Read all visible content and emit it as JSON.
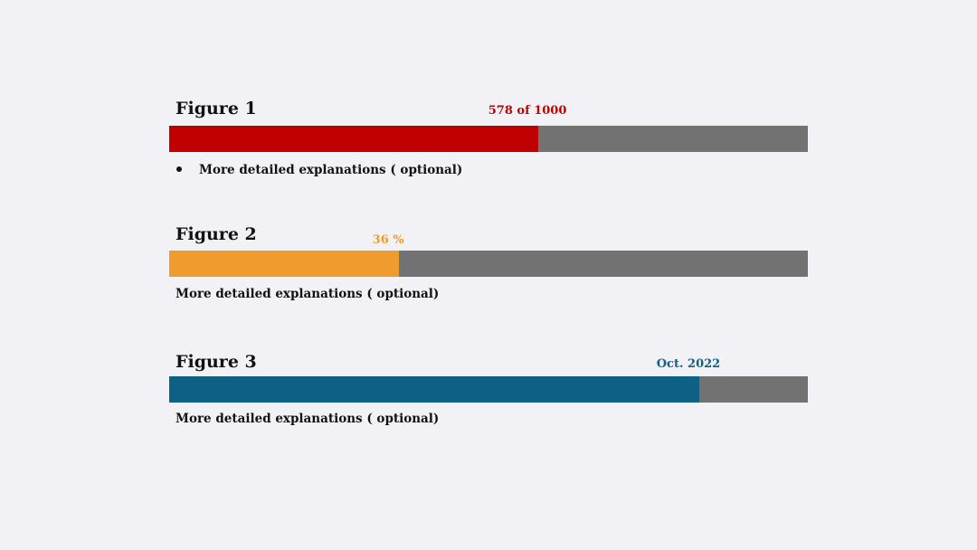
{
  "chart_data": [
    {
      "type": "progress",
      "title": "Figure 1",
      "value": 578,
      "max": 1000,
      "label": "578 of 1000",
      "note": "More detailed explanations ( optional)",
      "note_bulleted": true,
      "fill_color": "#c00000",
      "track_color": "#727272"
    },
    {
      "type": "progress",
      "title": "Figure 2",
      "value": 36,
      "max": 100,
      "label": "36 %",
      "note": "More detailed explanations ( optional)",
      "note_bulleted": false,
      "fill_color": "#ed9c2d",
      "track_color": "#727272"
    },
    {
      "type": "progress",
      "title": "Figure 3",
      "value": 0.83,
      "max": 1,
      "label": "Oct. 2022",
      "note": "More detailed explanations ( optional)",
      "note_bulleted": false,
      "fill_color": "#0e6185",
      "track_color": "#727272"
    }
  ]
}
